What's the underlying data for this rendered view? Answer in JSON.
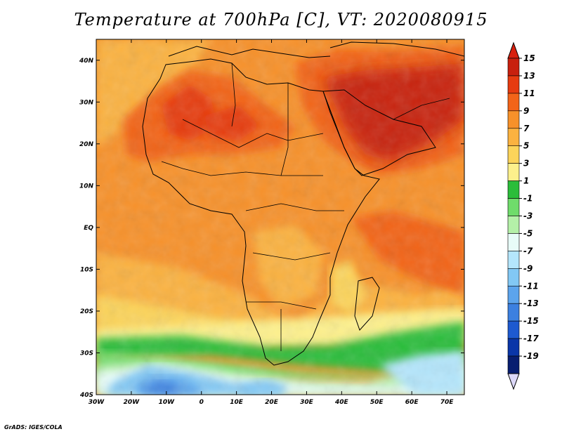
{
  "title": "Temperature at 700hPa [C], VT: 2020080915",
  "footer": "GrADS: IGES/COLA",
  "map": {
    "lon_range": [
      -30,
      75
    ],
    "lat_range": [
      -40,
      45
    ],
    "lon_ticks": [
      {
        "value": -30,
        "label": "30W"
      },
      {
        "value": -20,
        "label": "20W"
      },
      {
        "value": -10,
        "label": "10W"
      },
      {
        "value": 0,
        "label": "0"
      },
      {
        "value": 10,
        "label": "10E"
      },
      {
        "value": 20,
        "label": "20E"
      },
      {
        "value": 30,
        "label": "30E"
      },
      {
        "value": 40,
        "label": "40E"
      },
      {
        "value": 50,
        "label": "50E"
      },
      {
        "value": 60,
        "label": "60E"
      },
      {
        "value": 70,
        "label": "70E"
      }
    ],
    "lat_ticks": [
      {
        "value": 40,
        "label": "40N"
      },
      {
        "value": 30,
        "label": "30N"
      },
      {
        "value": 20,
        "label": "20N"
      },
      {
        "value": 10,
        "label": "10N"
      },
      {
        "value": 0,
        "label": "EQ"
      },
      {
        "value": -10,
        "label": "10S"
      },
      {
        "value": -20,
        "label": "20S"
      },
      {
        "value": -30,
        "label": "30S"
      },
      {
        "value": -40,
        "label": "40S"
      }
    ]
  },
  "colorbar": {
    "labels": [
      "15",
      "13",
      "11",
      "9",
      "7",
      "5",
      "3",
      "1",
      "-1",
      "-3",
      "-5",
      "-7",
      "-9",
      "-11",
      "-13",
      "-15",
      "-17",
      "-19"
    ],
    "colors": [
      "#c8200e",
      "#e63b10",
      "#f26419",
      "#f7912a",
      "#fbb240",
      "#fcd45a",
      "#fdf08c",
      "#2bbd3a",
      "#6fdc6b",
      "#b4f0a8",
      "#e8fcf8",
      "#b4e6fc",
      "#82c8f4",
      "#5ca4ec",
      "#3c80e0",
      "#1e5ad0",
      "#0a36a8",
      "#081e70"
    ],
    "top_color": "#d8200e",
    "bottom_color": "#dcd8f8"
  }
}
